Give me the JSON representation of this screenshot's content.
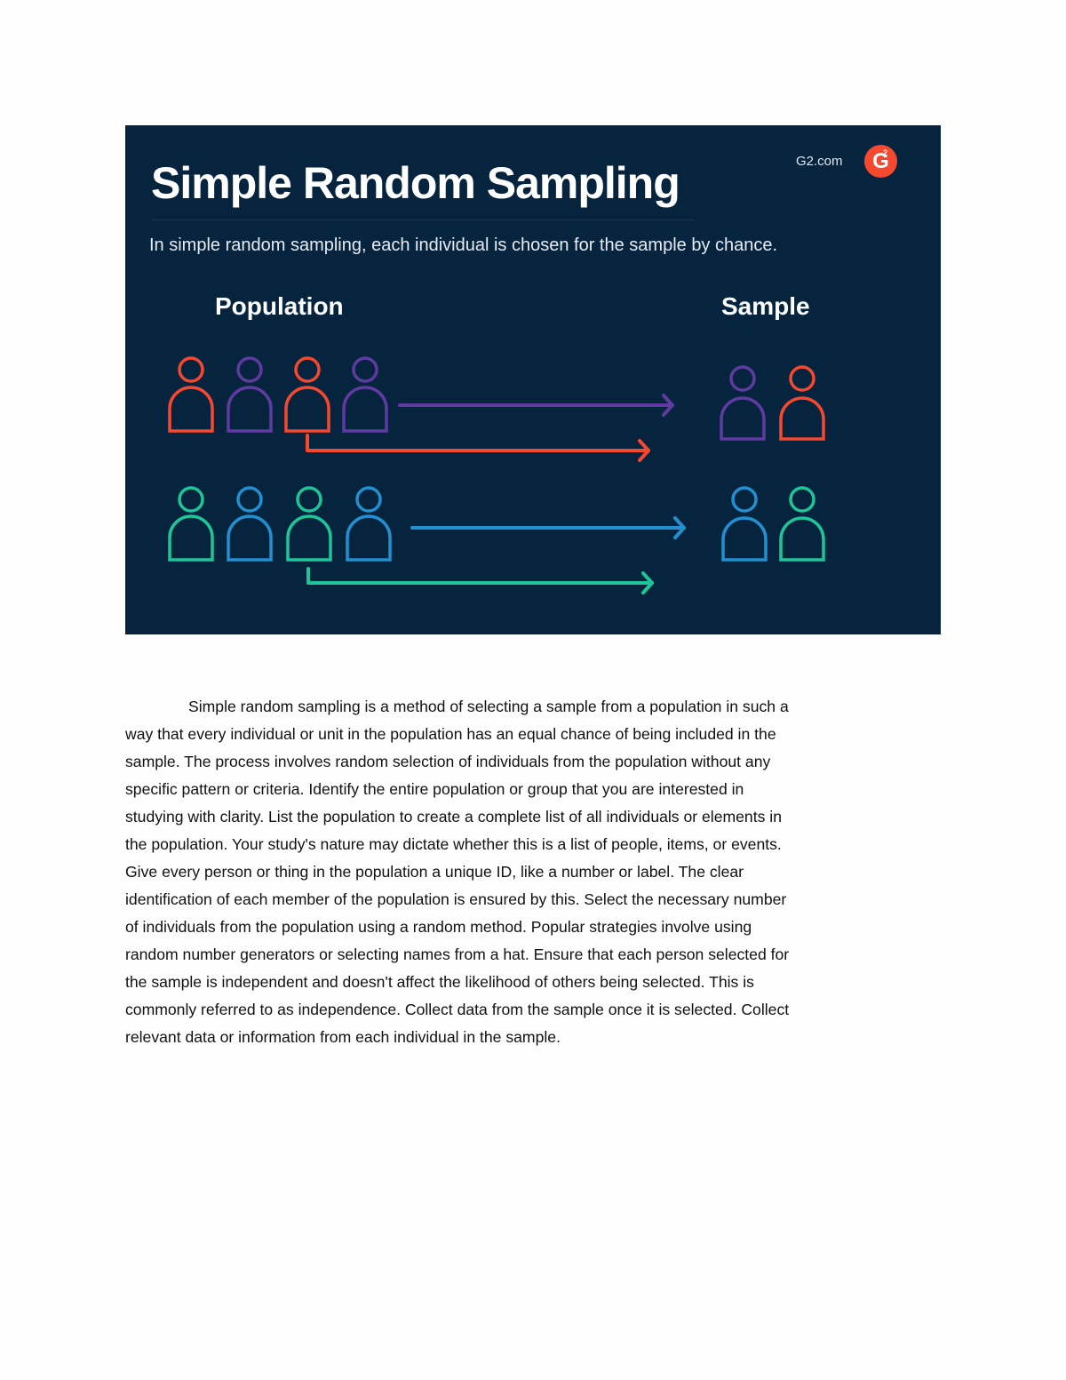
{
  "infographic": {
    "title": "Simple Random Sampling",
    "subtitle": "In simple random sampling, each individual is chosen for the sample by chance.",
    "brand": "G2.com",
    "logo": "G2",
    "population_label": "Population",
    "sample_label": "Sample",
    "colors": {
      "background": "#07243f",
      "orange": "#f4482f",
      "purple": "#5f3aa1",
      "green": "#1ec598",
      "blue": "#2290d0"
    },
    "population_rows": [
      [
        "orange",
        "purple",
        "orange",
        "purple"
      ],
      [
        "green",
        "blue",
        "green",
        "blue"
      ]
    ],
    "sample_rows": [
      [
        "purple",
        "orange"
      ],
      [
        "blue",
        "green"
      ]
    ],
    "arrows": [
      "purple",
      "orange",
      "blue",
      "green"
    ]
  },
  "body": {
    "lines": [
      "Simple random sampling is a method of selecting a sample from a population in such a",
      "way that every individual or unit in the population has an equal chance of being included in the",
      "sample. The process involves random selection of individuals from the population without any",
      "specific pattern or criteria. Identify the entire population or group that you are interested in",
      "studying with clarity. List the population to create a complete list of all individuals or elements in",
      "the population. Your study's nature may dictate whether this is a list of people, items, or events.",
      "Give every person or thing in the population a unique ID, like a number or label. The clear",
      "identification of each member of the population is ensured by this. Select the necessary number",
      "of individuals from the population using a random method. Popular strategies involve using",
      "random number generators or selecting names from a hat. Ensure that each person selected for",
      "the sample is independent and doesn't affect the likelihood of others being selected. This is",
      "commonly referred to as independence. Collect data from the sample once it is selected. Collect",
      "relevant data or information from each individual in the sample."
    ]
  }
}
